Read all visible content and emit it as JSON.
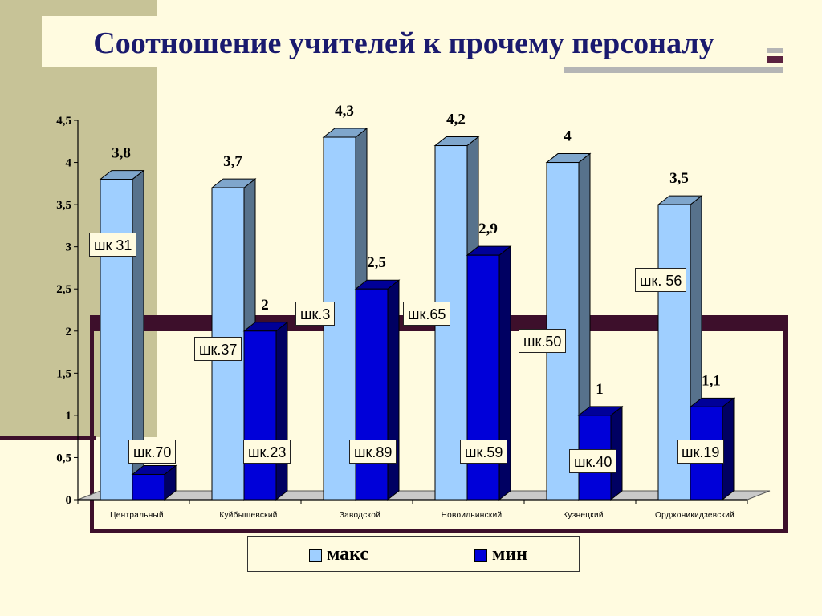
{
  "title": "Соотношение учителей к прочему персоналу",
  "colors": {
    "background": "#fffbe0",
    "panel": "#c7c397",
    "frame": "#3d0f2b",
    "maks": "#9fcfff",
    "min": "#0000d9"
  },
  "chart_data": {
    "type": "bar",
    "title": "",
    "categories": [
      "Центральный",
      "Куйбышевский",
      "Заводской",
      "Новоильинский",
      "Кузнецкий",
      "Орджоникидзевский"
    ],
    "series": [
      {
        "name": "макс",
        "values": [
          3.8,
          3.7,
          4.3,
          4.2,
          4.0,
          3.5
        ],
        "value_labels": [
          "3,8",
          "3,7",
          "4,3",
          "4,2",
          "4",
          "3,5"
        ],
        "tags": [
          "шк 31",
          "шк.37",
          "шк.3",
          "шк.65",
          "шк.50",
          "шк. 56"
        ]
      },
      {
        "name": "мин",
        "values": [
          0.3,
          2.0,
          2.5,
          2.9,
          1.0,
          1.1
        ],
        "value_labels": [
          "",
          "2",
          "2,5",
          "2,9",
          "1",
          "1,1"
        ],
        "tags": [
          "шк.70",
          "шк.23",
          "шк.89",
          "шк.59",
          "шк.40",
          "шк.19"
        ]
      }
    ],
    "ylim": [
      0,
      4.5
    ],
    "yticks": [
      "0",
      "0,5",
      "1",
      "1,5",
      "2",
      "2,5",
      "3",
      "3,5",
      "4",
      "4,5"
    ],
    "grid": false,
    "legend": "bottom"
  }
}
